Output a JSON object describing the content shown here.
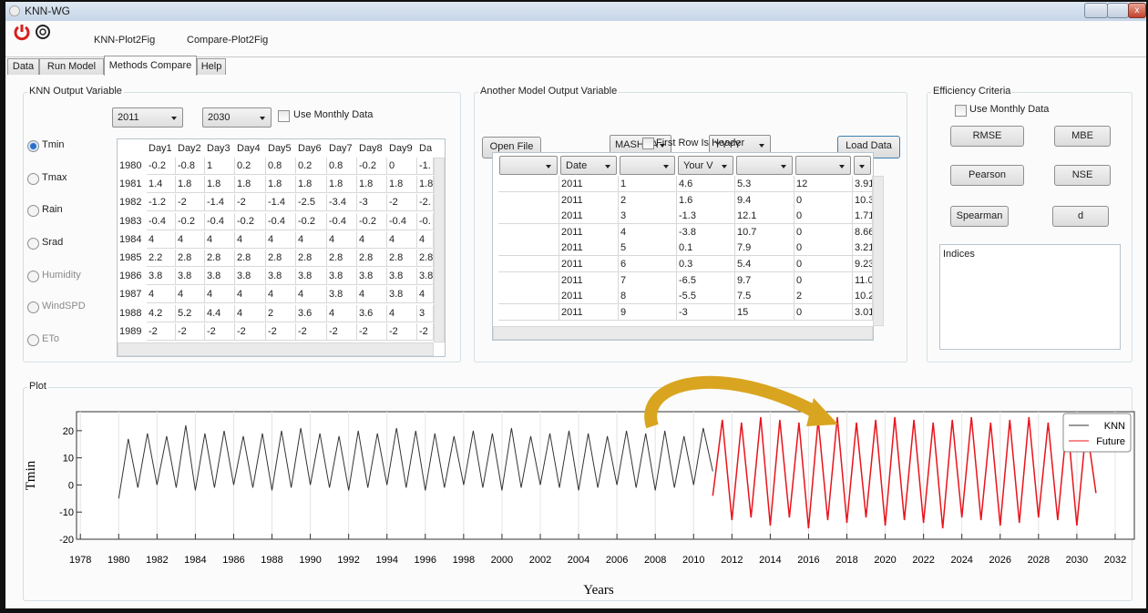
{
  "window": {
    "title": "KNN-WG"
  },
  "toolbar": {
    "items": [
      "KNN-Plot2Fig",
      "Compare-Plot2Fig"
    ]
  },
  "tabs": {
    "items": [
      "Data",
      "Run Model",
      "Methods Compare",
      "Help"
    ],
    "active": 2
  },
  "knn_output": {
    "title": "KNN Output Variable",
    "start_year": "2011",
    "end_year": "2030",
    "monthly_label": "Use Monthly Data",
    "variables": [
      "Tmin",
      "Tmax",
      "Rain",
      "Srad",
      "Humidity",
      "WindSPD",
      "ETo"
    ],
    "selected": 0,
    "disabled": [
      4,
      5,
      6
    ],
    "table": {
      "columns": [
        "Day1",
        "Day2",
        "Day3",
        "Day4",
        "Day5",
        "Day6",
        "Day7",
        "Day8",
        "Day9",
        "Da"
      ],
      "rows": [
        {
          "year": "1980",
          "cells": [
            "-0.2",
            "-0.8",
            "1",
            "0.2",
            "0.8",
            "0.2",
            "0.8",
            "-0.2",
            "0",
            "-1."
          ]
        },
        {
          "year": "1981",
          "cells": [
            "1.4",
            "1.8",
            "1.8",
            "1.8",
            "1.8",
            "1.8",
            "1.8",
            "1.8",
            "1.8",
            "1.8"
          ]
        },
        {
          "year": "1982",
          "cells": [
            "-1.2",
            "-2",
            "-1.4",
            "-2",
            "-1.4",
            "-2.5",
            "-3.4",
            "-3",
            "-2",
            "-2."
          ]
        },
        {
          "year": "1983",
          "cells": [
            "-0.4",
            "-0.2",
            "-0.4",
            "-0.2",
            "-0.4",
            "-0.2",
            "-0.4",
            "-0.2",
            "-0.4",
            "-0."
          ]
        },
        {
          "year": "1984",
          "cells": [
            "4",
            "4",
            "4",
            "4",
            "4",
            "4",
            "4",
            "4",
            "4",
            "4"
          ]
        },
        {
          "year": "1985",
          "cells": [
            "2.2",
            "2.8",
            "2.8",
            "2.8",
            "2.8",
            "2.8",
            "2.8",
            "2.8",
            "2.8",
            "2.8"
          ]
        },
        {
          "year": "1986",
          "cells": [
            "3.8",
            "3.8",
            "3.8",
            "3.8",
            "3.8",
            "3.8",
            "3.8",
            "3.8",
            "3.8",
            "3.8"
          ]
        },
        {
          "year": "1987",
          "cells": [
            "4",
            "4",
            "4",
            "4",
            "4",
            "4",
            "3.8",
            "4",
            "3.8",
            "4"
          ]
        },
        {
          "year": "1988",
          "cells": [
            "4.2",
            "5.2",
            "4.4",
            "4",
            "2",
            "3.6",
            "4",
            "3.6",
            "4",
            "3"
          ]
        },
        {
          "year": "1989",
          "cells": [
            "-2",
            "-2",
            "-2",
            "-2",
            "-2",
            "-2",
            "-2",
            "-2",
            "-2",
            "-2"
          ]
        }
      ]
    }
  },
  "another_model": {
    "title": "Another Model Output Variable",
    "open_button": "Open File",
    "station": "MASHHA",
    "year_format": "YYYY",
    "load_button": "Load Data",
    "header_label": "First Row Is Header",
    "table": {
      "columns": [
        null,
        "Date",
        null,
        "Your V",
        null,
        null,
        null
      ],
      "rows": [
        [
          "2011",
          "1",
          "4.6",
          "5.3",
          "12",
          "3.91"
        ],
        [
          "2011",
          "2",
          "1.6",
          "9.4",
          "0",
          "10.3"
        ],
        [
          "2011",
          "3",
          "-1.3",
          "12.1",
          "0",
          "1.71"
        ],
        [
          "2011",
          "4",
          "-3.8",
          "10.7",
          "0",
          "8.66"
        ],
        [
          "2011",
          "5",
          "0.1",
          "7.9",
          "0",
          "3.21"
        ],
        [
          "2011",
          "6",
          "0.3",
          "5.4",
          "0",
          "9.23"
        ],
        [
          "2011",
          "7",
          "-6.5",
          "9.7",
          "0",
          "11.0"
        ],
        [
          "2011",
          "8",
          "-5.5",
          "7.5",
          "2",
          "10.2"
        ],
        [
          "2011",
          "9",
          "-3",
          "15",
          "0",
          "3.01"
        ]
      ]
    }
  },
  "efficiency": {
    "title": "Efficiency Criteria",
    "monthly_label": "Use Monthly Data",
    "buttons": [
      "RMSE",
      "MBE",
      "Pearson",
      "NSE",
      "Spearman",
      "d"
    ],
    "output_label": "Indices"
  },
  "plot": {
    "title": "Plot",
    "chart": {
      "type": "line",
      "y_label": "Tmin",
      "x_label": "Years",
      "legend": "upper right",
      "xlim": [
        1977.8,
        2033
      ],
      "ylim": [
        -20,
        27
      ],
      "xticks": [
        1978,
        1980,
        1982,
        1984,
        1986,
        1988,
        1990,
        1992,
        1994,
        1996,
        1998,
        2000,
        2002,
        2004,
        2006,
        2008,
        2010,
        2012,
        2014,
        2016,
        2018,
        2020,
        2022,
        2024,
        2026,
        2028,
        2030,
        2032
      ],
      "yticks": [
        20,
        10,
        0,
        -10,
        -20
      ],
      "series": [
        {
          "name": "KNN",
          "color": "#333333",
          "x": [
            1980,
            1980.5,
            1981,
            1981.5,
            1982,
            1982.5,
            1983,
            1983.5,
            1984,
            1984.5,
            1985,
            1985.5,
            1986,
            1986.5,
            1987,
            1987.5,
            1988,
            1988.5,
            1989,
            1989.5,
            1990,
            1990.5,
            1991,
            1991.5,
            1992,
            1992.5,
            1993,
            1993.5,
            1994,
            1994.5,
            1995,
            1995.5,
            1996,
            1996.5,
            1997,
            1997.5,
            1998,
            1998.5,
            1999,
            1999.5,
            2000,
            2000.5,
            2001,
            2001.5,
            2002,
            2002.5,
            2003,
            2003.5,
            2004,
            2004.5,
            2005,
            2005.5,
            2006,
            2006.5,
            2007,
            2007.5,
            2008,
            2008.5,
            2009,
            2009.5,
            2010,
            2010.5,
            2011
          ],
          "values": [
            -5,
            17,
            -1,
            19,
            0,
            18,
            -1,
            22,
            -2,
            19,
            -1,
            20,
            0,
            18,
            -1,
            19,
            -2,
            20,
            -1,
            21,
            0,
            19,
            -1,
            18,
            -2,
            20,
            -1,
            19,
            0,
            21,
            -1,
            20,
            -2,
            19,
            -1,
            18,
            0,
            20,
            -1,
            19,
            -2,
            21,
            -1,
            18,
            0,
            19,
            -1,
            20,
            -2,
            19,
            -1,
            18,
            0,
            20,
            -1,
            19,
            -2,
            20,
            -1,
            18,
            0,
            21,
            5
          ]
        },
        {
          "name": "Future",
          "color": "#e8141b",
          "x": [
            2011,
            2011.5,
            2012,
            2012.5,
            2013,
            2013.5,
            2014,
            2014.5,
            2015,
            2015.5,
            2016,
            2016.5,
            2017,
            2017.5,
            2018,
            2018.5,
            2019,
            2019.5,
            2020,
            2020.5,
            2021,
            2021.5,
            2022,
            2022.5,
            2023,
            2023.5,
            2024,
            2024.5,
            2025,
            2025.5,
            2026,
            2026.5,
            2027,
            2027.5,
            2028,
            2028.5,
            2029,
            2029.5,
            2030,
            2030.5,
            2031
          ],
          "values": [
            -4,
            24,
            -13,
            23,
            -12,
            25,
            -15,
            24,
            -12,
            23,
            -16,
            24,
            -13,
            25,
            -14,
            23,
            -12,
            24,
            -15,
            25,
            -13,
            24,
            -14,
            23,
            -16,
            24,
            -12,
            25,
            -13,
            23,
            -15,
            24,
            -14,
            25,
            -12,
            23,
            -13,
            24,
            -15,
            22,
            -3
          ]
        }
      ]
    }
  }
}
